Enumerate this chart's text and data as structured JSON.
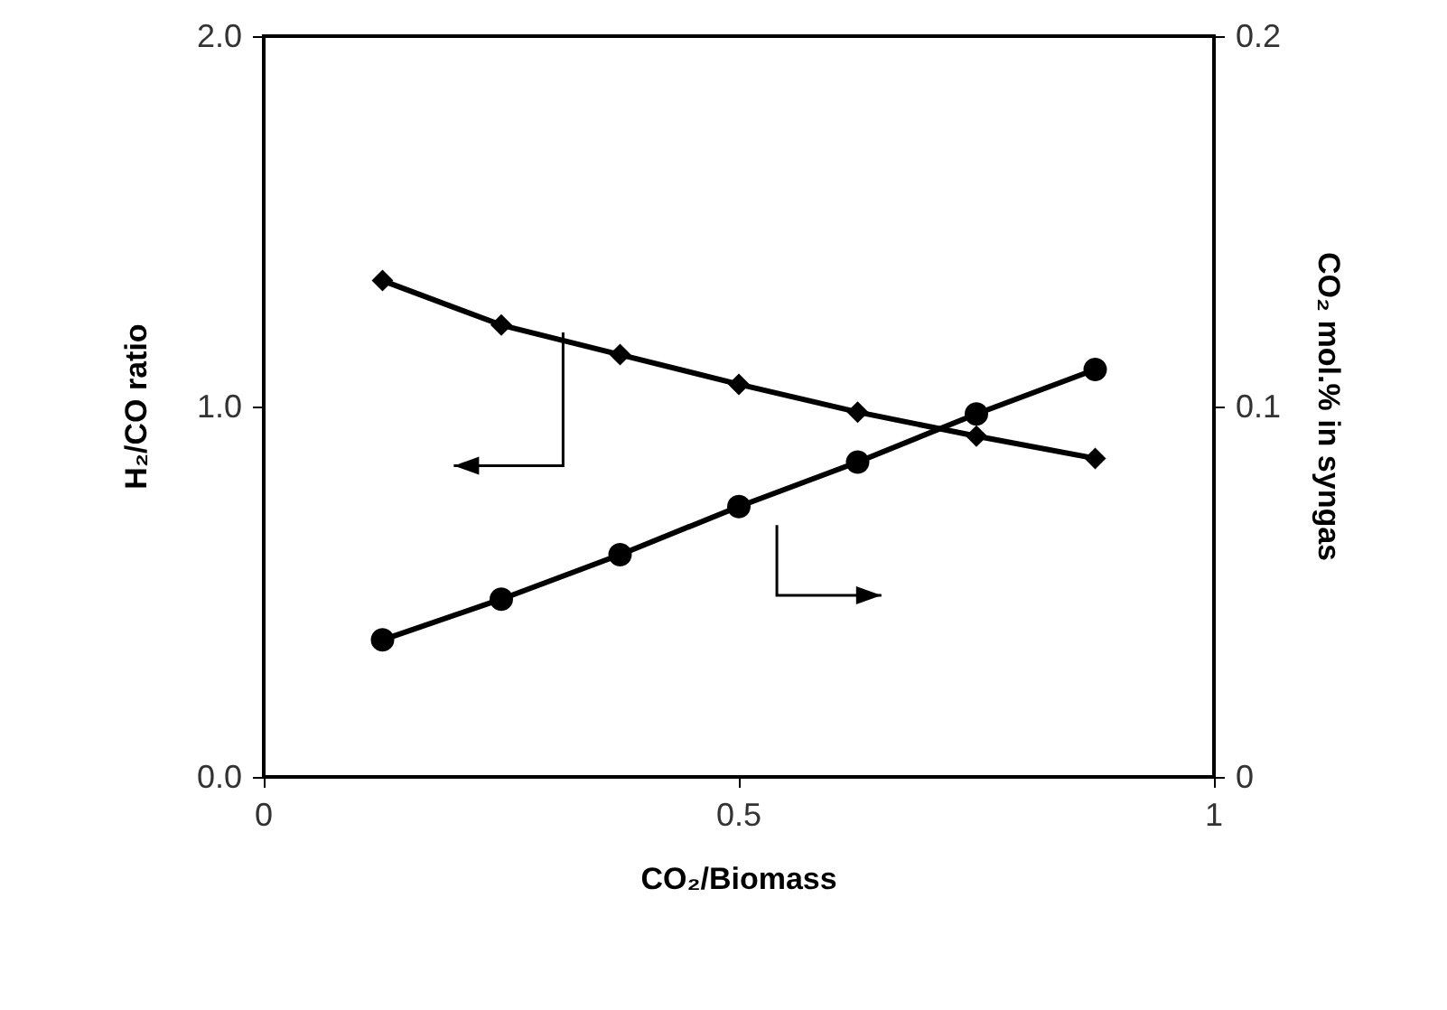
{
  "chart_data": {
    "type": "line",
    "xlabel": "CO₂/Biomass",
    "ylabel": "H₂/CO ratio",
    "y2label": "CO₂ mol.% in syngas",
    "x": [
      0.125,
      0.25,
      0.375,
      0.5,
      0.625,
      0.75,
      0.875
    ],
    "series": [
      {
        "color": "#000000",
        "marker": "diamond",
        "values": [
          1.34,
          1.22,
          1.14,
          1.06,
          0.985,
          0.92,
          0.86
        ]
      },
      {
        "color": "#000000",
        "marker": "circle",
        "axis": "y2",
        "values": [
          0.037,
          0.048,
          0.06,
          0.073,
          0.085,
          0.098,
          0.11
        ]
      }
    ],
    "xlim": [
      0,
      1
    ],
    "xticks": [
      0,
      0.5,
      1
    ],
    "ylim": [
      0,
      2
    ],
    "yticks": [
      {
        "value": 0,
        "label": "0.0"
      },
      {
        "value": 1,
        "label": "1.0"
      },
      {
        "value": 2,
        "label": "2.0"
      }
    ],
    "y2lim": [
      0,
      0.2
    ],
    "y2ticks": [
      0,
      0.1,
      0.2
    ],
    "line_style": "solid"
  }
}
